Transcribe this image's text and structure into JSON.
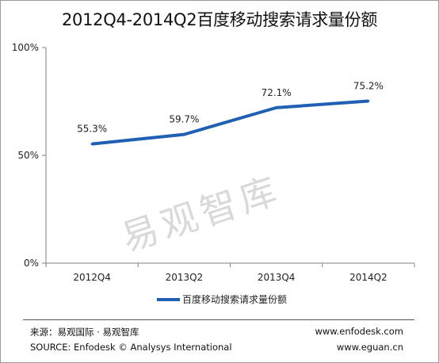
{
  "title": "2012Q4-2014Q2百度移动搜索请求量份额",
  "watermark": "易观智库",
  "chart_data": {
    "type": "line",
    "title": "2012Q4-2014Q2百度移动搜索请求量份额",
    "categories": [
      "2012Q4",
      "2013Q2",
      "2013Q4",
      "2014Q2"
    ],
    "series": [
      {
        "name": "百度移动搜索请求量份额",
        "values": [
          55.3,
          59.7,
          72.1,
          75.2
        ],
        "labels": [
          "55.3%",
          "59.7%",
          "72.1%",
          "75.2%"
        ],
        "color": "#1f5fb4"
      }
    ],
    "yticks": [
      "100%",
      "50%",
      "0%"
    ],
    "ylim": [
      0,
      100
    ],
    "legend": "bottom-center",
    "grid": false
  },
  "footer": {
    "source_cn": "来源：易观国际 · 易观智库",
    "source_en": "SOURCE: Enfodesk © Analysys International",
    "url1": "www.enfodesk.com",
    "url2": "www.eguan.cn"
  }
}
